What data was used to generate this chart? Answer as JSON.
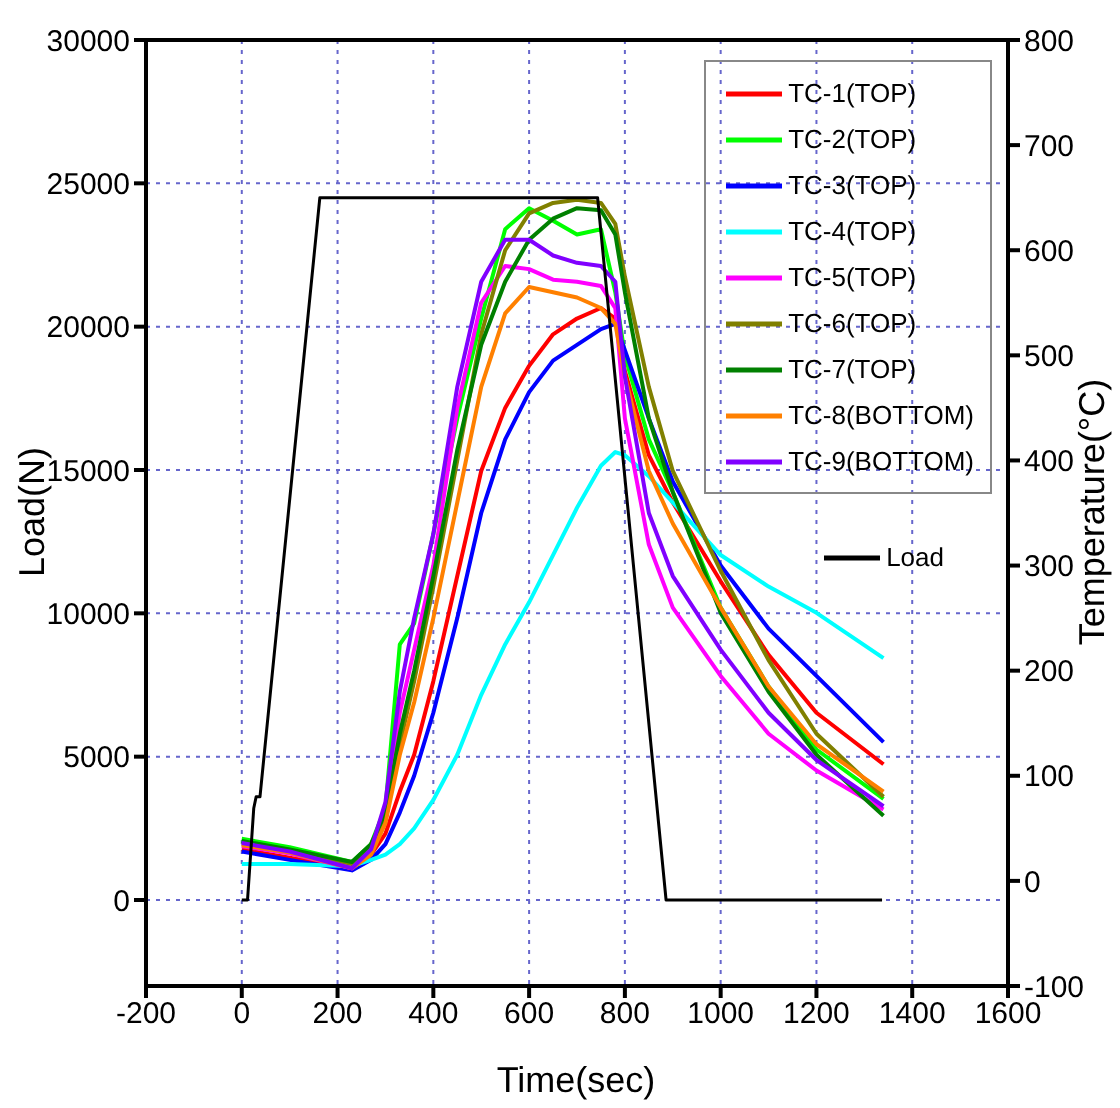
{
  "chart_data": {
    "type": "line",
    "xlabel": "Time(sec)",
    "ylabel": "Load(N)",
    "y2label": "Temperature(°C)",
    "xlim": [
      -200,
      1600
    ],
    "xticks": [
      -200,
      0,
      200,
      400,
      600,
      800,
      1000,
      1200,
      1400,
      1600
    ],
    "ylim": [
      -3000,
      30000
    ],
    "yticks": [
      0,
      5000,
      10000,
      15000,
      20000,
      25000,
      30000
    ],
    "y2lim": [
      -100,
      800
    ],
    "y2ticks": [
      -100,
      0,
      100,
      200,
      300,
      400,
      500,
      600,
      700,
      800
    ],
    "grid": true,
    "legend": "top right",
    "marker": "none",
    "line_style": "solid",
    "series": [
      {
        "name": "TC-1(TOP)",
        "color": "#ff0000",
        "axis": "y2",
        "x": [
          0,
          100,
          230,
          270,
          300,
          330,
          360,
          400,
          450,
          500,
          550,
          600,
          650,
          700,
          750,
          780,
          800,
          850,
          900,
          1000,
          1100,
          1200,
          1340
        ],
        "values": [
          30,
          22,
          12,
          25,
          45,
          85,
          120,
          190,
          290,
          390,
          450,
          490,
          520,
          535,
          545,
          535,
          485,
          405,
          360,
          285,
          215,
          160,
          111
        ]
      },
      {
        "name": "TC-2(TOP)",
        "color": "#00ff00",
        "axis": "y2",
        "x": [
          0,
          100,
          230,
          270,
          300,
          330,
          360,
          400,
          450,
          500,
          550,
          600,
          650,
          700,
          750,
          780,
          800,
          850,
          900,
          1000,
          1100,
          1200,
          1340
        ],
        "values": [
          40,
          32,
          18,
          35,
          70,
          225,
          245,
          330,
          440,
          535,
          620,
          640,
          628,
          615,
          620,
          560,
          500,
          420,
          370,
          260,
          185,
          125,
          78
        ]
      },
      {
        "name": "TC-3(TOP)",
        "color": "#0000ff",
        "axis": "y2",
        "x": [
          0,
          100,
          230,
          270,
          300,
          330,
          360,
          400,
          450,
          500,
          550,
          600,
          650,
          700,
          750,
          780,
          800,
          850,
          900,
          1000,
          1100,
          1200,
          1340
        ],
        "values": [
          28,
          20,
          10,
          20,
          35,
          65,
          100,
          160,
          250,
          350,
          420,
          465,
          495,
          510,
          525,
          530,
          505,
          440,
          380,
          300,
          240,
          195,
          132
        ]
      },
      {
        "name": "TC-4(TOP)",
        "color": "#00ffff",
        "axis": "y2",
        "x": [
          0,
          100,
          230,
          270,
          300,
          330,
          360,
          400,
          450,
          500,
          550,
          600,
          650,
          700,
          750,
          780,
          800,
          850,
          900,
          1000,
          1100,
          1200,
          1340
        ],
        "values": [
          16,
          16,
          14,
          20,
          25,
          35,
          50,
          77,
          120,
          177,
          225,
          265,
          310,
          355,
          395,
          408,
          405,
          385,
          360,
          310,
          280,
          255,
          212
        ]
      },
      {
        "name": "TC-5(TOP)",
        "color": "#ff00ff",
        "axis": "y2",
        "x": [
          0,
          100,
          230,
          270,
          300,
          330,
          360,
          400,
          450,
          500,
          550,
          600,
          650,
          700,
          750,
          780,
          800,
          850,
          900,
          1000,
          1100,
          1200,
          1340
        ],
        "values": [
          33,
          26,
          12,
          28,
          65,
          160,
          220,
          300,
          450,
          550,
          585,
          582,
          572,
          570,
          566,
          545,
          440,
          320,
          260,
          195,
          140,
          105,
          68
        ]
      },
      {
        "name": "TC-6(TOP)",
        "color": "#808000",
        "axis": "y2",
        "x": [
          0,
          100,
          230,
          270,
          300,
          330,
          360,
          400,
          450,
          500,
          550,
          600,
          650,
          700,
          750,
          780,
          800,
          850,
          900,
          1000,
          1100,
          1200,
          1340
        ],
        "values": [
          35,
          28,
          16,
          30,
          60,
          130,
          190,
          280,
          400,
          520,
          600,
          635,
          645,
          648,
          645,
          625,
          575,
          470,
          390,
          295,
          210,
          140,
          80
        ]
      },
      {
        "name": "TC-7(TOP)",
        "color": "#008000",
        "axis": "y2",
        "x": [
          0,
          100,
          230,
          270,
          300,
          330,
          360,
          400,
          450,
          500,
          550,
          600,
          650,
          700,
          750,
          780,
          800,
          850,
          900,
          1000,
          1100,
          1200,
          1340
        ],
        "values": [
          38,
          30,
          18,
          35,
          65,
          140,
          200,
          290,
          410,
          510,
          570,
          610,
          630,
          640,
          638,
          615,
          560,
          440,
          370,
          255,
          180,
          120,
          62
        ]
      },
      {
        "name": "TC-8(BOTTOM)",
        "color": "#ff8000",
        "axis": "y2",
        "x": [
          0,
          100,
          230,
          270,
          300,
          330,
          360,
          400,
          450,
          500,
          550,
          600,
          650,
          700,
          750,
          780,
          800,
          850,
          900,
          1000,
          1100,
          1200,
          1340
        ],
        "values": [
          34,
          27,
          12,
          25,
          55,
          120,
          170,
          250,
          360,
          470,
          540,
          565,
          560,
          555,
          545,
          530,
          480,
          390,
          340,
          260,
          185,
          130,
          85
        ]
      },
      {
        "name": "TC-9(BOTTOM)",
        "color": "#8000ff",
        "axis": "y2",
        "x": [
          0,
          100,
          230,
          270,
          300,
          330,
          360,
          400,
          450,
          500,
          550,
          600,
          650,
          700,
          750,
          780,
          800,
          850,
          900,
          1000,
          1100,
          1200,
          1340
        ],
        "values": [
          36,
          28,
          12,
          30,
          75,
          180,
          250,
          330,
          470,
          570,
          610,
          610,
          595,
          588,
          585,
          570,
          480,
          350,
          290,
          220,
          160,
          115,
          71
        ]
      },
      {
        "name": "Load",
        "color": "#000000",
        "x": [
          0,
          12,
          25,
          30,
          38,
          163,
          743,
          886,
          1337
        ],
        "values": [
          0,
          0,
          3200,
          3600,
          3600,
          24500,
          24500,
          0,
          0
        ]
      }
    ]
  }
}
